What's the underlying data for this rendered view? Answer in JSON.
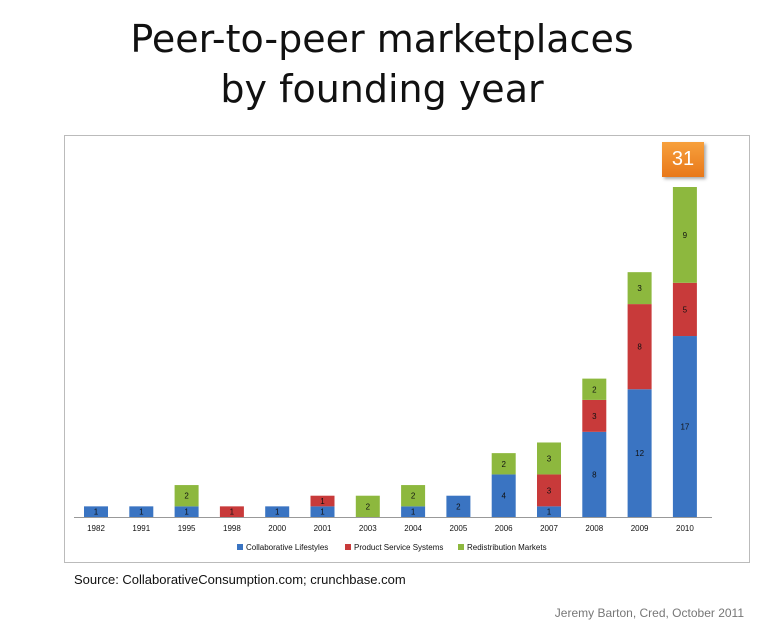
{
  "title_line1": "Peer-to-peer marketplaces",
  "title_line2": "by founding year",
  "source": "Source: CollaborativeConsumption.com; crunchbase.com",
  "credit": "Jeremy Barton, Cred, October 2011",
  "total_badge": "31",
  "chart_data": {
    "type": "bar",
    "stacked": true,
    "categories": [
      "1982",
      "1991",
      "1995",
      "1998",
      "2000",
      "2001",
      "2003",
      "2004",
      "2005",
      "2006",
      "2007",
      "2008",
      "2009",
      "2010"
    ],
    "series": [
      {
        "name": "Collaborative Lifestyles",
        "color": "#3a74c2",
        "values": [
          1,
          1,
          1,
          0,
          1,
          1,
          0,
          1,
          2,
          4,
          1,
          8,
          12,
          17
        ]
      },
      {
        "name": "Product Service Systems",
        "color": "#c83a3a",
        "values": [
          0,
          0,
          0,
          1,
          0,
          1,
          0,
          0,
          0,
          0,
          3,
          3,
          8,
          5
        ]
      },
      {
        "name": "Redistribution Markets",
        "color": "#8db83e",
        "values": [
          0,
          0,
          2,
          0,
          0,
          0,
          2,
          2,
          0,
          2,
          3,
          2,
          3,
          9
        ]
      }
    ],
    "ylim": [
      0,
      31
    ],
    "legend": "bottom",
    "grid": false
  }
}
